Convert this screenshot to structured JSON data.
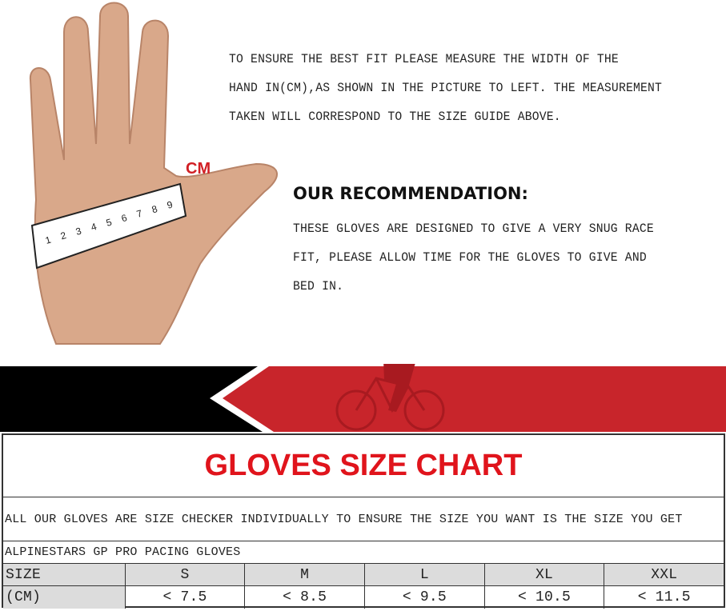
{
  "hand_label": "CM",
  "ruler_numbers": [
    "1",
    "2",
    "3",
    "4",
    "5",
    "6",
    "7",
    "8",
    "9"
  ],
  "intro_lines": [
    "TO ENSURE THE BEST FIT PLEASE MEASURE THE WIDTH OF THE",
    "HAND IN(CM),AS SHOWN IN THE PICTURE TO LEFT. THE MEASUREMENT",
    "TAKEN WILL CORRESPOND TO THE SIZE GUIDE ABOVE."
  ],
  "recommendation": {
    "title": "OUR RECOMMENDATION:",
    "lines": [
      "THESE GLOVES ARE DESIGNED TO GIVE A VERY SNUG RACE",
      "FIT, PLEASE ALLOW TIME FOR THE GLOVES TO GIVE AND",
      "BED IN."
    ]
  },
  "colors": {
    "accent_red": "#c8252b",
    "black": "#000000",
    "title_red": "#e0141c"
  },
  "chart": {
    "title": "GLOVES SIZE CHART",
    "note": "ALL  OUR GLOVES ARE SIZE CHECKER INDIVIDUALLY TO ENSURE THE SIZE YOU WANT IS THE SIZE YOU GET",
    "model": "ALPINESTARS GP PRO PACING GLOVES",
    "size_label": "SIZE",
    "cm_label": "(CM)",
    "sizes": [
      "S",
      "M",
      "L",
      "XL",
      "XXL"
    ],
    "cm": [
      "< 7.5",
      "< 8.5",
      "< 9.5",
      "< 10.5",
      "< 11.5"
    ]
  }
}
